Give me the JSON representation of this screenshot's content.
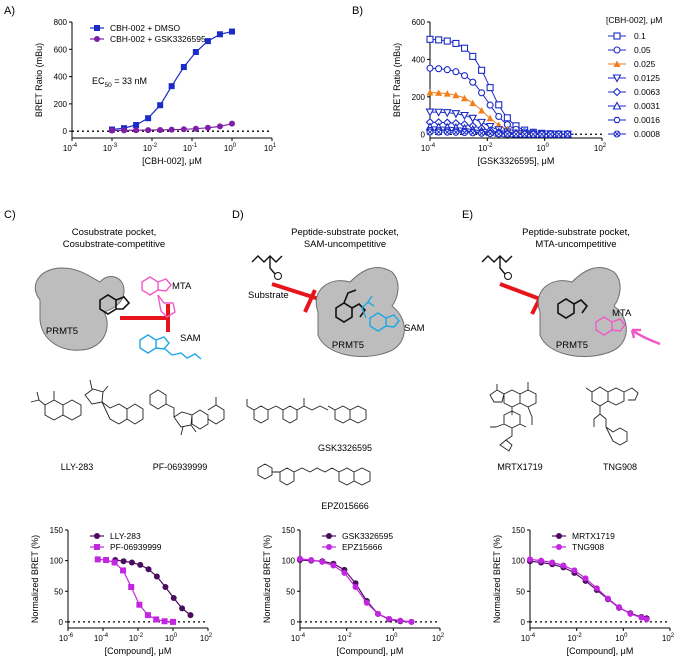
{
  "panel_labels": {
    "A": "A)",
    "B": "B)",
    "C": "C)",
    "D": "D)",
    "E": "E)"
  },
  "colors": {
    "blue": "#1a2bc8",
    "purple": "#7e1fa6",
    "orange": "#f07f1a",
    "dark_purple": "#4a0d5e",
    "magenta": "#c326e0",
    "red": "#e8141c",
    "cyan": "#1fa7e6",
    "pink": "#f05ac8",
    "gray": "#bfbfbf"
  },
  "panel_C": {
    "title_line1": "Cosubstrate pocket,",
    "title_line2": "Cosubstrate-competitive",
    "protein": "PRMT5",
    "ligand1": "MTA",
    "ligand2": "SAM",
    "compound1": "LLY-283",
    "compound2": "PF-06939999"
  },
  "panel_D": {
    "title_line1": "Peptide-substrate pocket,",
    "title_line2": "SAM-uncompetitive",
    "substrate": "Substrate",
    "protein": "PRMT5",
    "ligand": "SAM",
    "compound1": "GSK3326595",
    "compound2": "EPZ015666"
  },
  "panel_E": {
    "title_line1": "Peptide-substrate pocket,",
    "title_line2": "MTA-uncompetitive",
    "protein": "PRMT5",
    "ligand": "MTA",
    "compound1": "MRTX1719",
    "compound2": "TNG908"
  },
  "chart_data": [
    {
      "id": "A",
      "type": "line",
      "xlabel": "[CBH-002], μM",
      "ylabel": "BRET Ratio (mBu)",
      "xscale": "log",
      "xlim": [
        0.0001,
        10
      ],
      "ylim": [
        -50,
        800
      ],
      "xticks": [
        0.0001,
        0.001,
        0.01,
        0.1,
        1,
        10
      ],
      "xtick_exp": [
        "-4",
        "-3",
        "-2",
        "-1",
        "0",
        "1"
      ],
      "yticks": [
        0,
        200,
        400,
        600,
        800
      ],
      "ytick_labels": [
        "0",
        "200",
        "400",
        "600",
        "800"
      ],
      "x_base": "10",
      "legend_position": "top-left",
      "annotation": {
        "prefix": "EC",
        "sub": "50",
        "rest": " = 33 nM"
      },
      "series": [
        {
          "name": "CBH-002 + DMSO",
          "color": "#1a2bc8",
          "marker": "square",
          "x": [
            0.001,
            0.002,
            0.004,
            0.008,
            0.016,
            0.031,
            0.0625,
            0.125,
            0.25,
            0.5,
            1.0
          ],
          "y": [
            12,
            22,
            45,
            95,
            190,
            330,
            470,
            580,
            660,
            710,
            730
          ]
        },
        {
          "name": "CBH-002 + GSK3326595",
          "color": "#7e1fa6",
          "marker": "circle",
          "x": [
            0.001,
            0.002,
            0.004,
            0.008,
            0.016,
            0.031,
            0.0625,
            0.125,
            0.25,
            0.5,
            1.0
          ],
          "y": [
            5,
            6,
            7,
            8,
            9,
            11,
            14,
            18,
            25,
            35,
            55
          ]
        }
      ]
    },
    {
      "id": "B",
      "type": "line",
      "xlabel": "[GSK3326595], μM",
      "ylabel": "BRET Ratio (mBu)",
      "xscale": "log",
      "xlim": [
        0.0001,
        100
      ],
      "ylim": [
        -20,
        600
      ],
      "xticks": [
        0.0001,
        0.01,
        1,
        100
      ],
      "xtick_exp": [
        "-4",
        "-2",
        "0",
        "2"
      ],
      "yticks": [
        0,
        200,
        400,
        600
      ],
      "ytick_labels": [
        "0",
        "200",
        "400",
        "600"
      ],
      "x_base": "10",
      "legend_title": "[CBH-002], μM",
      "legend_position": "right",
      "x_points": [
        0.0001,
        0.0002,
        0.0004,
        0.0008,
        0.0016,
        0.0031,
        0.0063,
        0.0125,
        0.025,
        0.05,
        0.1,
        0.2,
        0.4,
        0.8,
        1.6,
        3.1,
        6.3
      ],
      "series": [
        {
          "name": "0.1",
          "color": "#1a2bc8",
          "marker": "square-open",
          "top": 510,
          "ic50": 0.012
        },
        {
          "name": "0.05",
          "color": "#1a2bc8",
          "marker": "circle-open",
          "top": 355,
          "ic50": 0.01
        },
        {
          "name": "0.025",
          "color": "#f07f1a",
          "marker": "triangle-up-filled",
          "top": 225,
          "ic50": 0.008
        },
        {
          "name": "0.0125",
          "color": "#1a2bc8",
          "marker": "triangle-down-open",
          "top": 120,
          "ic50": 0.007
        },
        {
          "name": "0.0063",
          "color": "#1a2bc8",
          "marker": "diamond-open",
          "top": 65,
          "ic50": 0.006
        },
        {
          "name": "0.0031",
          "color": "#1a2bc8",
          "marker": "triangle-up-open",
          "top": 40,
          "ic50": 0.005
        },
        {
          "name": "0.0016",
          "color": "#1a2bc8",
          "marker": "hexagon-open",
          "top": 22,
          "ic50": 0.005
        },
        {
          "name": "0.0008",
          "color": "#1a2bc8",
          "marker": "circle-x",
          "top": 12,
          "ic50": 0.005
        }
      ]
    },
    {
      "id": "C",
      "type": "line",
      "xlabel": "[Compound], μM",
      "ylabel": "Normalized BRET (%)",
      "xscale": "log",
      "xlim": [
        1e-06,
        100
      ],
      "ylim": [
        -10,
        150
      ],
      "xticks": [
        1e-06,
        0.0001,
        0.01,
        1,
        100
      ],
      "xtick_exp": [
        "-6",
        "-4",
        "-2",
        "0",
        "2"
      ],
      "yticks": [
        0,
        50,
        100,
        150
      ],
      "ytick_labels": [
        "0",
        "50",
        "100",
        "150"
      ],
      "x_base": "10",
      "legend_position": "top-left",
      "series": [
        {
          "name": "LLY-283",
          "color": "#4a0d5e",
          "marker": "circle",
          "x": [
            0.0005,
            0.0015,
            0.0045,
            0.0135,
            0.04,
            0.12,
            0.37,
            1.1,
            3.3,
            10
          ],
          "y": [
            101,
            99,
            97,
            93,
            86,
            74,
            57,
            39,
            22,
            11
          ]
        },
        {
          "name": "PF-06939999",
          "color": "#c326e0",
          "marker": "square",
          "x": [
            5e-05,
            0.00015,
            0.00046,
            0.0014,
            0.0041,
            0.012,
            0.037,
            0.11,
            0.33,
            1.0
          ],
          "y": [
            102,
            101,
            97,
            84,
            57,
            28,
            11,
            4,
            1,
            0
          ]
        }
      ]
    },
    {
      "id": "D",
      "type": "line",
      "xlabel": "[Compound], μM",
      "ylabel": "Normalized BRET (%)",
      "xscale": "log",
      "xlim": [
        0.0001,
        100
      ],
      "ylim": [
        -10,
        150
      ],
      "xticks": [
        0.0001,
        0.01,
        1,
        100
      ],
      "xtick_exp": [
        "-4",
        "-2",
        "0",
        "2"
      ],
      "yticks": [
        0,
        50,
        100,
        150
      ],
      "ytick_labels": [
        "0",
        "50",
        "100",
        "150"
      ],
      "x_base": "10",
      "legend_position": "top-left",
      "series": [
        {
          "name": "GSK3326595",
          "color": "#4a0d5e",
          "marker": "circle",
          "x": [
            0.0001,
            0.0003,
            0.0009,
            0.0027,
            0.008,
            0.024,
            0.073,
            0.22,
            0.66,
            2.0,
            6.0
          ],
          "y": [
            101,
            100,
            99,
            95,
            85,
            63,
            34,
            13,
            4,
            1,
            0
          ]
        },
        {
          "name": "EPZ15666",
          "color": "#c326e0",
          "marker": "circle",
          "x": [
            0.0001,
            0.0003,
            0.0009,
            0.0027,
            0.008,
            0.024,
            0.073,
            0.22,
            0.66,
            2.0,
            6.0
          ],
          "y": [
            103,
            101,
            98,
            92,
            80,
            57,
            31,
            13,
            5,
            2,
            0
          ]
        }
      ]
    },
    {
      "id": "E",
      "type": "line",
      "xlabel": "[Compound], μM",
      "ylabel": "Normalized BRET (%)",
      "xscale": "log",
      "xlim": [
        0.0001,
        100
      ],
      "ylim": [
        -10,
        150
      ],
      "xticks": [
        0.0001,
        0.01,
        1,
        100
      ],
      "xtick_exp": [
        "-4",
        "-2",
        "0",
        "2"
      ],
      "yticks": [
        0,
        50,
        100,
        150
      ],
      "ytick_labels": [
        "0",
        "50",
        "100",
        "150"
      ],
      "x_base": "10",
      "legend_position": "top-left",
      "series": [
        {
          "name": "MRTX1719",
          "color": "#4a0d5e",
          "marker": "circle",
          "x": [
            0.0001,
            0.0003,
            0.0009,
            0.0027,
            0.008,
            0.024,
            0.073,
            0.22,
            0.66,
            2.0,
            6.0,
            10
          ],
          "y": [
            99,
            97,
            94,
            89,
            80,
            67,
            52,
            37,
            23,
            14,
            8,
            6
          ]
        },
        {
          "name": "TNG908",
          "color": "#c326e0",
          "marker": "circle",
          "x": [
            0.0001,
            0.0003,
            0.0009,
            0.0027,
            0.008,
            0.024,
            0.073,
            0.22,
            0.66,
            2.0,
            6.0,
            10
          ],
          "y": [
            102,
            100,
            97,
            92,
            84,
            71,
            55,
            38,
            24,
            13,
            7,
            4
          ]
        }
      ]
    }
  ]
}
